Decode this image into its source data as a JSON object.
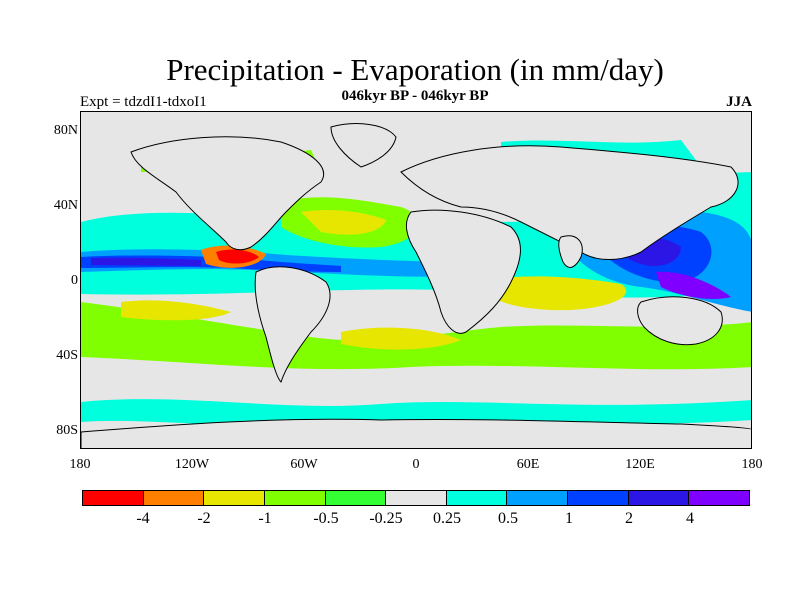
{
  "title": "Precipitation - Evaporation (in mm/day)",
  "subtitle": "046kyr BP - 046kyr BP",
  "left_label": "Expt = tdzdI1-tdxoI1",
  "right_label": "JJA",
  "lat_ticks": [
    "80N",
    "40N",
    "0",
    "40S",
    "80S"
  ],
  "lon_ticks": [
    "180",
    "120W",
    "60W",
    "0",
    "60E",
    "120E",
    "180"
  ],
  "colorbar": {
    "colors": [
      "#ff0000",
      "#ff8000",
      "#e6e600",
      "#80ff00",
      "#33ff33",
      "#e6e6e6",
      "#00ffdd",
      "#00a0ff",
      "#0040ff",
      "#2b16e6",
      "#8000ff"
    ],
    "labels": [
      "-4",
      "-2",
      "-1",
      "-0.5",
      "-0.25",
      "0.25",
      "0.5",
      "1",
      "2",
      "4"
    ]
  }
}
